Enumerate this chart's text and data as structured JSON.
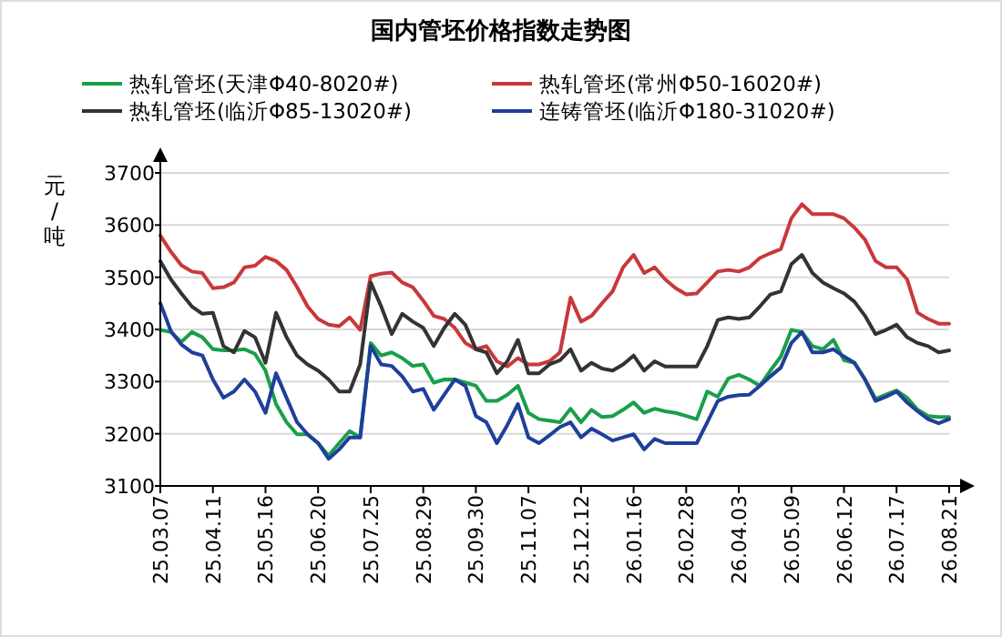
{
  "chart_data": {
    "type": "line",
    "title": "国内管坯价格指数走势图",
    "ylabel": "元/吨",
    "categories": [
      "25.03.07",
      null,
      null,
      null,
      null,
      "25.04.11",
      null,
      null,
      null,
      null,
      "25.05.16",
      null,
      null,
      null,
      null,
      "25.06.20",
      null,
      null,
      null,
      null,
      "25.07.25",
      null,
      null,
      null,
      null,
      "25.08.29",
      null,
      null,
      null,
      null,
      "25.09.30",
      null,
      null,
      null,
      null,
      "25.11.07",
      null,
      null,
      null,
      null,
      "25.12.12",
      null,
      null,
      null,
      null,
      "26.01.16",
      null,
      null,
      null,
      null,
      "26.02.28",
      null,
      null,
      null,
      null,
      "26.04.03",
      null,
      null,
      null,
      null,
      "26.05.09",
      null,
      null,
      null,
      null,
      "26.06.12",
      null,
      null,
      null,
      null,
      "26.07.17",
      null,
      null,
      null,
      null,
      "26.08.21"
    ],
    "series": [
      {
        "name": "热轧管坯(天津Φ40-8020#)",
        "color": "#1a9e4a",
        "values": [
          3399,
          3395,
          3376,
          3395,
          3385,
          3362,
          3360,
          3360,
          3362,
          3353,
          3321,
          3257,
          3222,
          3199,
          3199,
          3182,
          3158,
          3182,
          3205,
          3193,
          3374,
          3350,
          3356,
          3345,
          3330,
          3333,
          3298,
          3304,
          3304,
          3298,
          3292,
          3263,
          3263,
          3275,
          3292,
          3240,
          3228,
          3225,
          3222,
          3248,
          3222,
          3246,
          3232,
          3234,
          3246,
          3260,
          3240,
          3248,
          3243,
          3240,
          3234,
          3228,
          3281,
          3271,
          3306,
          3313,
          3304,
          3292,
          3321,
          3348,
          3399,
          3395,
          3368,
          3362,
          3380,
          3341,
          3336,
          3304,
          3267,
          3275,
          3283,
          3269,
          3246,
          3234,
          3232,
          3232
        ]
      },
      {
        "name": "热轧管坯(常州Φ50-16020#)",
        "color": "#c8383a",
        "values": [
          3580,
          3549,
          3523,
          3511,
          3508,
          3479,
          3481,
          3490,
          3519,
          3522,
          3539,
          3531,
          3514,
          3481,
          3444,
          3420,
          3409,
          3406,
          3423,
          3399,
          3502,
          3507,
          3509,
          3490,
          3481,
          3455,
          3426,
          3420,
          3403,
          3374,
          3362,
          3368,
          3339,
          3329,
          3345,
          3333,
          3333,
          3339,
          3356,
          3461,
          3415,
          3426,
          3450,
          3473,
          3519,
          3543,
          3508,
          3519,
          3496,
          3479,
          3467,
          3469,
          3490,
          3511,
          3514,
          3511,
          3519,
          3537,
          3546,
          3554,
          3613,
          3640,
          3621,
          3621,
          3621,
          3613,
          3595,
          3572,
          3531,
          3519,
          3519,
          3496,
          3432,
          3420,
          3411,
          3411
        ]
      },
      {
        "name": "热轧管坯(临沂Φ85-13020#)",
        "color": "#333333",
        "values": [
          3531,
          3496,
          3469,
          3444,
          3430,
          3432,
          3368,
          3356,
          3397,
          3385,
          3336,
          3432,
          3385,
          3350,
          3333,
          3321,
          3304,
          3281,
          3281,
          3333,
          3490,
          3444,
          3391,
          3430,
          3415,
          3403,
          3368,
          3403,
          3430,
          3409,
          3362,
          3356,
          3316,
          3339,
          3380,
          3316,
          3316,
          3333,
          3341,
          3362,
          3321,
          3336,
          3325,
          3321,
          3333,
          3350,
          3321,
          3339,
          3329,
          3329,
          3329,
          3329,
          3368,
          3418,
          3423,
          3420,
          3423,
          3444,
          3467,
          3473,
          3525,
          3543,
          3508,
          3490,
          3479,
          3469,
          3453,
          3426,
          3391,
          3399,
          3409,
          3385,
          3374,
          3368,
          3356,
          3360
        ]
      },
      {
        "name": "连铸管坯(临沂Φ180-31020#)",
        "color": "#1f3f9a",
        "values": [
          3450,
          3397,
          3371,
          3356,
          3350,
          3304,
          3269,
          3281,
          3304,
          3281,
          3240,
          3316,
          3269,
          3222,
          3199,
          3182,
          3152,
          3170,
          3193,
          3193,
          3368,
          3333,
          3330,
          3310,
          3281,
          3286,
          3246,
          3275,
          3304,
          3292,
          3234,
          3222,
          3182,
          3217,
          3257,
          3193,
          3182,
          3197,
          3213,
          3222,
          3193,
          3210,
          3199,
          3187,
          3193,
          3199,
          3170,
          3190,
          3182,
          3182,
          3182,
          3182,
          3222,
          3263,
          3271,
          3274,
          3275,
          3292,
          3310,
          3327,
          3374,
          3395,
          3356,
          3356,
          3362,
          3348,
          3336,
          3304,
          3263,
          3271,
          3281,
          3260,
          3243,
          3228,
          3220,
          3228
        ]
      }
    ],
    "ylim": [
      3100,
      3700
    ],
    "yticks": [
      3100,
      3200,
      3300,
      3400,
      3500,
      3600,
      3700
    ],
    "grid": "y",
    "legend": "top",
    "marker": "none",
    "line_style": "solid"
  }
}
